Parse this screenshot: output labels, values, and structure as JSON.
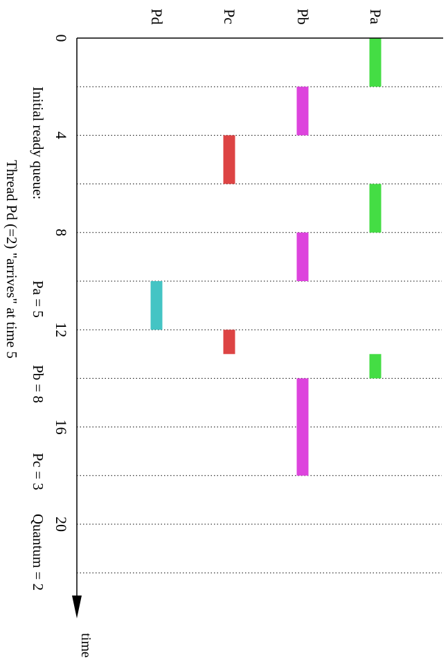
{
  "chart_data": {
    "type": "gantt",
    "x_axis_label": "time",
    "tick_labels": [
      "0",
      "4",
      "8",
      "12",
      "16",
      "20"
    ],
    "tick_values": [
      0,
      4,
      8,
      12,
      16,
      20
    ],
    "threads": [
      {
        "name": "Pa",
        "color": "#44dd44"
      },
      {
        "name": "Pb",
        "color": "#dd44dd"
      },
      {
        "name": "Pc",
        "color": "#dd4444"
      },
      {
        "name": "Pd",
        "color": "#44c4c4"
      }
    ],
    "bars": [
      {
        "thread": "Pa",
        "start": 0,
        "end": 2
      },
      {
        "thread": "Pb",
        "start": 2,
        "end": 4
      },
      {
        "thread": "Pc",
        "start": 4,
        "end": 6
      },
      {
        "thread": "Pa",
        "start": 6,
        "end": 8
      },
      {
        "thread": "Pb",
        "start": 8,
        "end": 10
      },
      {
        "thread": "Pd",
        "start": 10,
        "end": 12
      },
      {
        "thread": "Pc",
        "start": 12,
        "end": 13
      },
      {
        "thread": "Pa",
        "start": 13,
        "end": 14
      },
      {
        "thread": "Pb",
        "start": 14,
        "end": 18
      }
    ],
    "gridlines": [
      2,
      4,
      6,
      8,
      10,
      12,
      14,
      16,
      18,
      20,
      22
    ],
    "time_range": [
      0,
      23.5
    ]
  },
  "caption": {
    "line1": {
      "prefix": "Initial ready queue:",
      "pa": "Pa = 5",
      "pb": "Pb = 8",
      "pc": "Pc = 3",
      "quantum": "Quantum = 2"
    },
    "line2": "Thread Pd (=2) \"arrives\" at time 5"
  }
}
